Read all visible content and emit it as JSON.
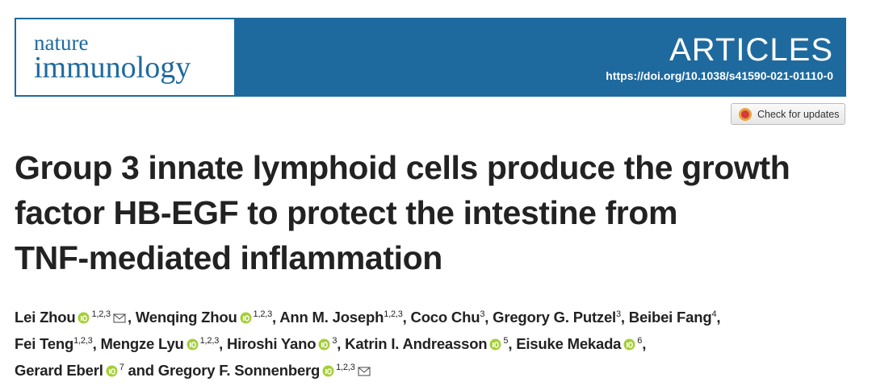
{
  "header": {
    "journal_line1": "nature",
    "journal_line2": "immunology",
    "section": "ARTICLES",
    "doi": "https://doi.org/10.1038/s41590-021-01110-0",
    "updates_button": "Check for updates"
  },
  "title_lines": [
    "Group 3 innate lymphoid cells produce the growth",
    "factor HB-EGF to protect the intestine from",
    "TNF-mediated inflammation"
  ],
  "author_lines": [
    [
      {
        "name": "Lei Zhou",
        "orcid": true,
        "affiliations": "1,2,3",
        "email": true,
        "sep": ", "
      },
      {
        "name": "Wenqing Zhou",
        "orcid": true,
        "affiliations": "1,2,3",
        "sep": ", "
      },
      {
        "name": "Ann M. Joseph",
        "affiliations": "1,2,3",
        "sep": ", "
      },
      {
        "name": "Coco Chu",
        "affiliations": "3",
        "sep": ", "
      },
      {
        "name": "Gregory G. Putzel",
        "affiliations": "3",
        "sep": ", "
      },
      {
        "name": "Beibei Fang",
        "affiliations": "4",
        "sep": ","
      }
    ],
    [
      {
        "name": "Fei Teng",
        "affiliations": "1,2,3",
        "sep": ", "
      },
      {
        "name": "Mengze Lyu",
        "orcid": true,
        "affiliations": "1,2,3",
        "sep": ", "
      },
      {
        "name": "Hiroshi Yano",
        "orcid": true,
        "affiliations": "3",
        "sep": ", "
      },
      {
        "name": "Katrin I. Andreasson",
        "orcid": true,
        "affiliations": "5",
        "sep": ", "
      },
      {
        "name": "Eisuke Mekada",
        "orcid": true,
        "affiliations": "6",
        "sep": ","
      }
    ],
    [
      {
        "name": "Gerard Eberl",
        "orcid": true,
        "affiliations": "7",
        "sep": " and "
      },
      {
        "name": "Gregory F. Sonnenberg",
        "orcid": true,
        "affiliations": "1,2,3",
        "email": true
      }
    ]
  ]
}
